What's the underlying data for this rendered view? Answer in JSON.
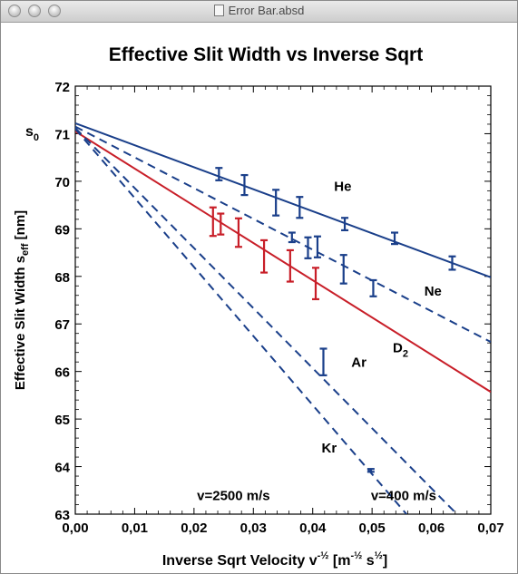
{
  "window": {
    "title": "Error Bar.absd",
    "buttons": [
      "close",
      "minimize",
      "zoom"
    ]
  },
  "chart_data": {
    "type": "line",
    "title": "Effective Slit Width vs Inverse Sqrt",
    "xlabel_main": "Inverse Sqrt Velocity v",
    "xlabel_exp": "-½",
    "xlabel_unit_open": "[m",
    "xlabel_unit_exp1": "-½",
    "xlabel_unit_s": " s",
    "xlabel_unit_exp2": "½",
    "xlabel_unit_close": "]",
    "ylabel_main": "Effective Slit Width s",
    "ylabel_sub": "eff",
    "ylabel_unit": "[nm]",
    "s0_label": "s",
    "s0_sub": "0",
    "xlim": [
      0,
      0.07
    ],
    "ylim": [
      63,
      72
    ],
    "x_ticks": [
      "0,00",
      "0,01",
      "0,02",
      "0,03",
      "0,04",
      "0,05",
      "0,06",
      "0,07"
    ],
    "y_ticks": [
      "63",
      "64",
      "65",
      "66",
      "67",
      "68",
      "69",
      "70",
      "71",
      "72"
    ],
    "colors": {
      "blue": "#1a3f8a",
      "red": "#c81e28",
      "axis": "#000000"
    },
    "lines": [
      {
        "name": "He",
        "style": "solid",
        "color": "#1a3f8a",
        "x": [
          0,
          0.07
        ],
        "y": [
          71.22,
          67.98
        ]
      },
      {
        "name": "Ne",
        "style": "dashed",
        "color": "#1a3f8a",
        "x": [
          0,
          0.07
        ],
        "y": [
          71.15,
          66.62
        ]
      },
      {
        "name": "D2",
        "style": "solid",
        "color": "#c81e28",
        "x": [
          0,
          0.07
        ],
        "y": [
          71.05,
          65.57
        ]
      },
      {
        "name": "Ar",
        "style": "dashed",
        "color": "#1a3f8a",
        "x": [
          0,
          0.0643
        ],
        "y": [
          71.12,
          63.0
        ]
      },
      {
        "name": "Kr",
        "style": "dashed",
        "color": "#1a3f8a",
        "x": [
          0,
          0.0558
        ],
        "y": [
          71.1,
          63.0
        ]
      }
    ],
    "error_bars": [
      {
        "color": "#1a3f8a",
        "x": 0.0242,
        "y": 70.15,
        "err": 0.13
      },
      {
        "color": "#1a3f8a",
        "x": 0.0285,
        "y": 69.92,
        "err": 0.21
      },
      {
        "color": "#1a3f8a",
        "x": 0.0338,
        "y": 69.55,
        "err": 0.27
      },
      {
        "color": "#1a3f8a",
        "x": 0.0378,
        "y": 69.45,
        "err": 0.22
      },
      {
        "color": "#1a3f8a",
        "x": 0.0454,
        "y": 69.1,
        "err": 0.13
      },
      {
        "color": "#1a3f8a",
        "x": 0.0538,
        "y": 68.8,
        "err": 0.12
      },
      {
        "color": "#1a3f8a",
        "x": 0.0635,
        "y": 68.28,
        "err": 0.14
      },
      {
        "color": "#1a3f8a",
        "x": 0.0365,
        "y": 68.82,
        "err": 0.1
      },
      {
        "color": "#1a3f8a",
        "x": 0.0392,
        "y": 68.6,
        "err": 0.22
      },
      {
        "color": "#1a3f8a",
        "x": 0.0408,
        "y": 68.62,
        "err": 0.22
      },
      {
        "color": "#1a3f8a",
        "x": 0.0452,
        "y": 68.15,
        "err": 0.3
      },
      {
        "color": "#1a3f8a",
        "x": 0.0502,
        "y": 67.75,
        "err": 0.17
      },
      {
        "color": "#1a3f8a",
        "x": 0.0418,
        "y": 66.2,
        "err": 0.28
      },
      {
        "color": "#1a3f8a",
        "x": 0.0498,
        "y": 63.92,
        "err": 0.03
      },
      {
        "color": "#c81e28",
        "x": 0.0232,
        "y": 69.15,
        "err": 0.3
      },
      {
        "color": "#c81e28",
        "x": 0.0245,
        "y": 69.1,
        "err": 0.22
      },
      {
        "color": "#c81e28",
        "x": 0.0275,
        "y": 68.92,
        "err": 0.3
      },
      {
        "color": "#c81e28",
        "x": 0.0318,
        "y": 68.42,
        "err": 0.34
      },
      {
        "color": "#c81e28",
        "x": 0.0362,
        "y": 68.22,
        "err": 0.33
      },
      {
        "color": "#c81e28",
        "x": 0.0405,
        "y": 67.85,
        "err": 0.33
      }
    ],
    "annotations": [
      {
        "text": "He",
        "x": 0.0436,
        "y": 69.8
      },
      {
        "text": "Ne",
        "x": 0.0588,
        "y": 67.6
      },
      {
        "text": "D",
        "sub": "2",
        "x": 0.0535,
        "y": 66.4
      },
      {
        "text": "Ar",
        "x": 0.0465,
        "y": 66.1
      },
      {
        "text": "Kr",
        "x": 0.0415,
        "y": 64.3
      },
      {
        "text": "v=2500 m/s",
        "x": 0.0205,
        "y": 63.3
      },
      {
        "text": "v=400 m/s",
        "x": 0.0498,
        "y": 63.3
      }
    ]
  }
}
